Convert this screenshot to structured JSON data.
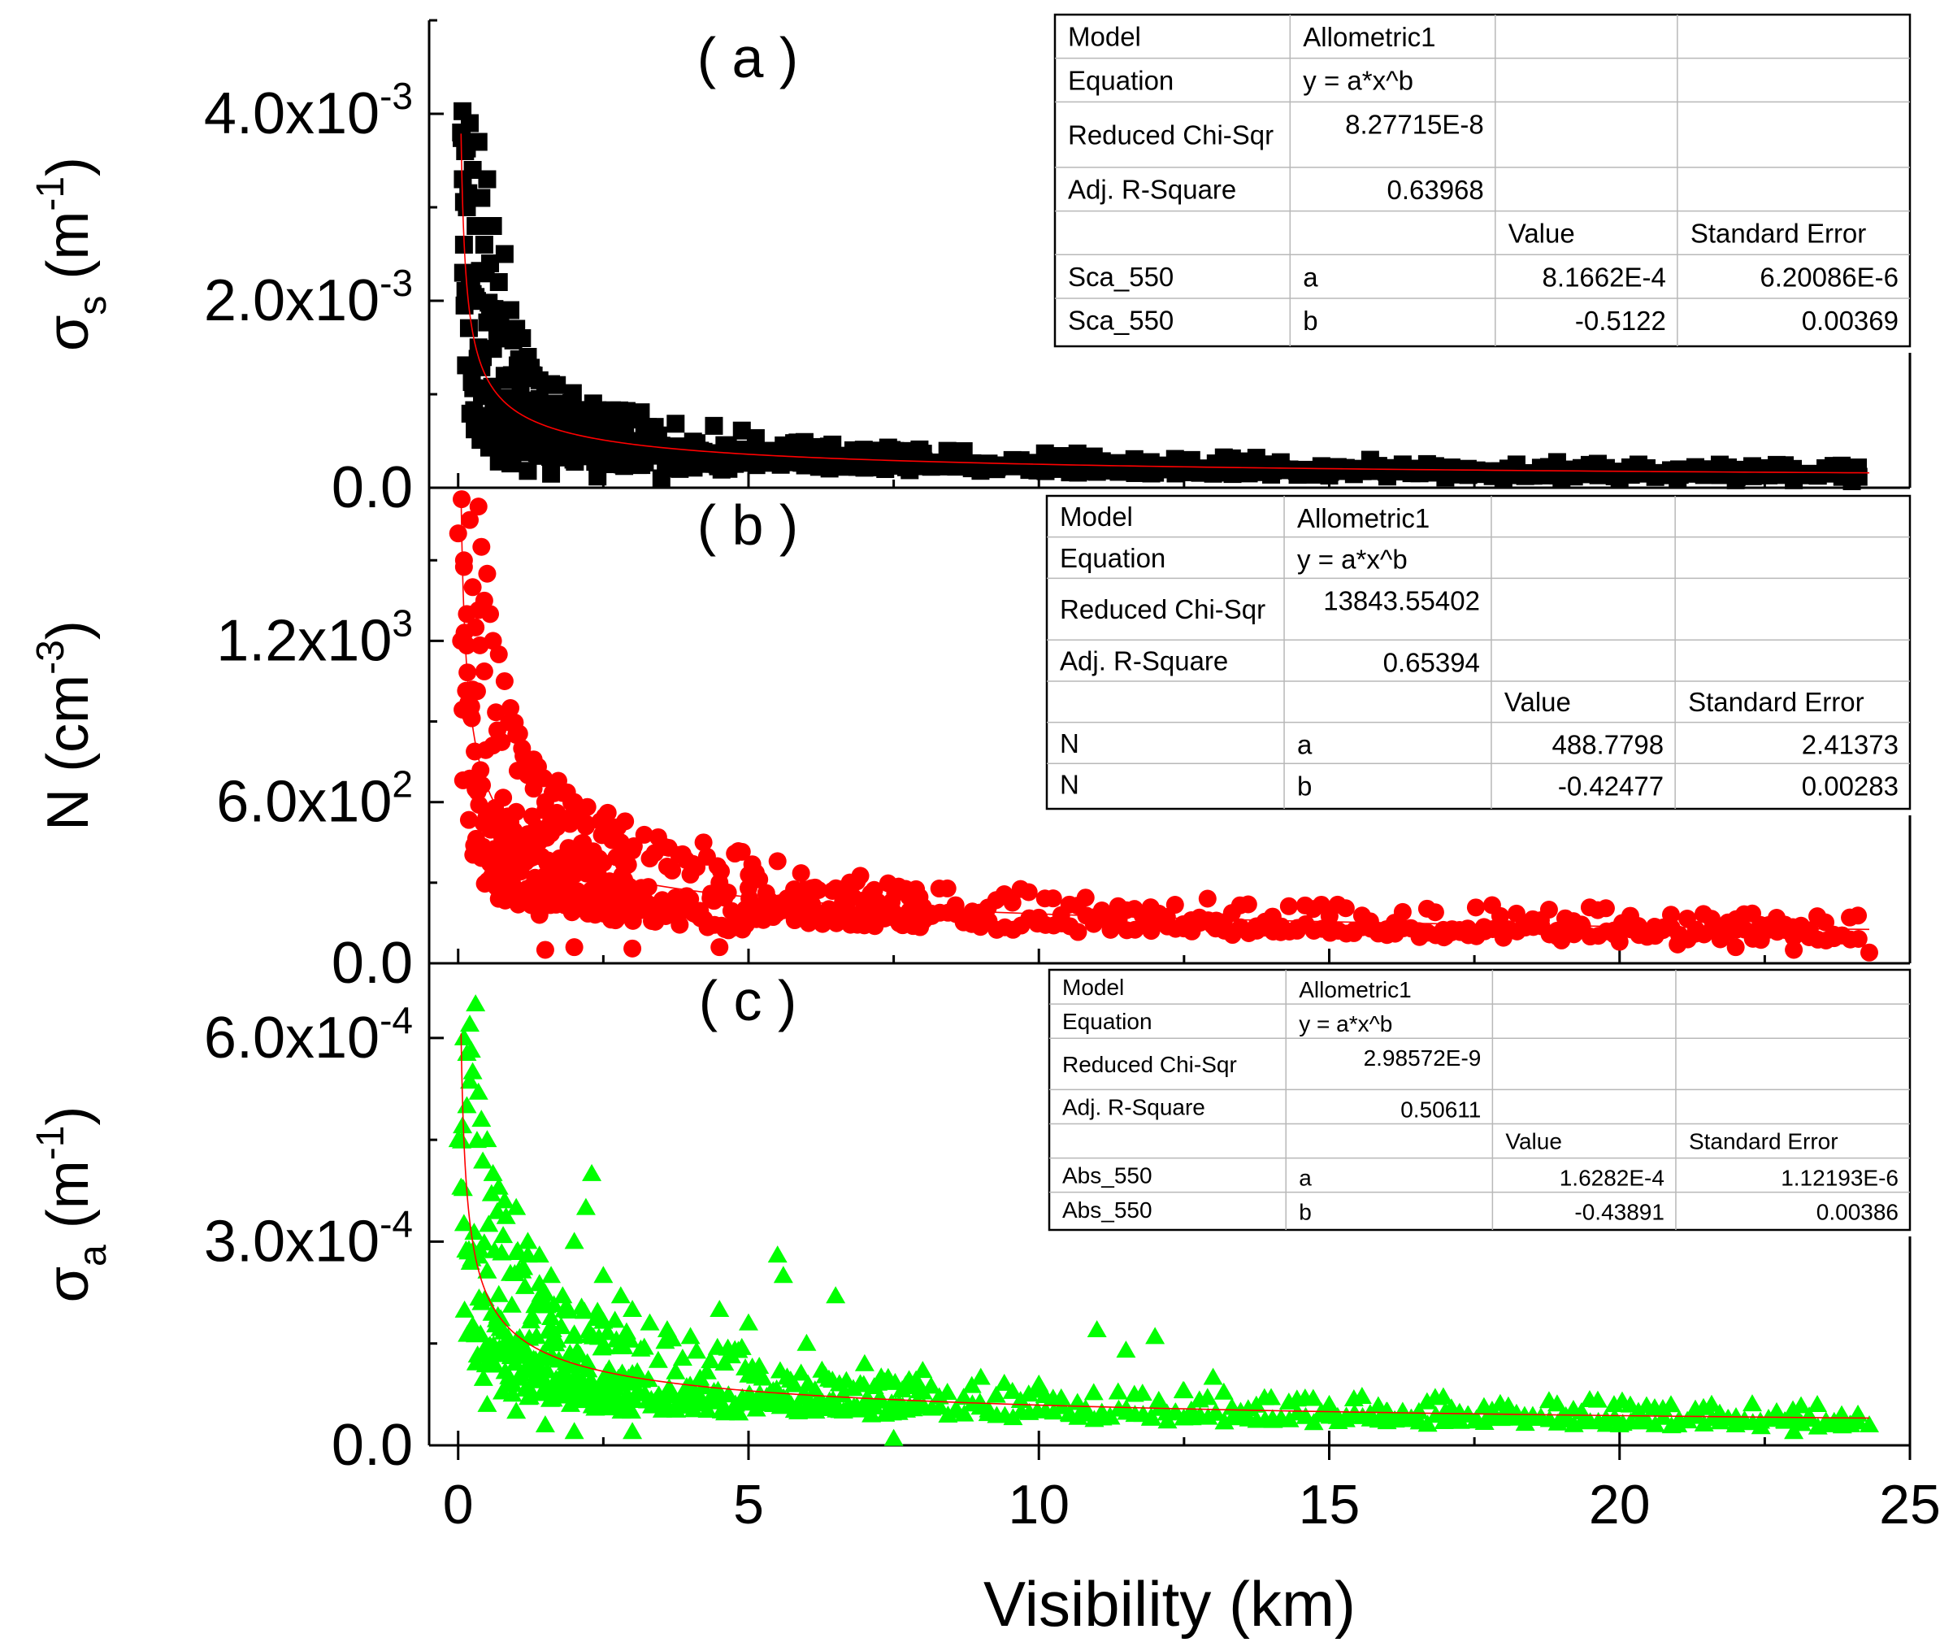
{
  "chart_data": [
    {
      "id": "a",
      "type": "scatter",
      "panel_label": "( a )",
      "ylabel": "σs (m-1)",
      "ylabel_main": "σ",
      "ylabel_sub": "s",
      "ylabel_unit_base": " (m",
      "ylabel_unit_exp": "-1",
      "ylabel_unit_close": ")",
      "ylim": [
        0,
        0.005
      ],
      "xlim": [
        -0.5,
        25
      ],
      "yticks": [
        {
          "value": 0.0,
          "mantissa": "0.0",
          "exp": ""
        },
        {
          "value": 0.002,
          "mantissa": "2.0x10",
          "exp": "-3"
        },
        {
          "value": 0.004,
          "mantissa": "4.0x10",
          "exp": "-3"
        }
      ],
      "marker": "square",
      "color": "#000000",
      "fit": {
        "a": 0.00081662,
        "b": -0.5122,
        "x_start": 0.05,
        "x_end": 24.3
      },
      "points": [
        [
          0.05,
          0.0038
        ],
        [
          0.08,
          0.0033
        ],
        [
          0.1,
          0.0026
        ],
        [
          0.12,
          0.0036
        ],
        [
          0.15,
          0.003
        ],
        [
          0.2,
          0.0039
        ],
        [
          0.25,
          0.0034
        ],
        [
          0.3,
          0.0028
        ],
        [
          0.35,
          0.0037
        ],
        [
          0.4,
          0.0031
        ],
        [
          0.45,
          0.0026
        ],
        [
          0.5,
          0.0033
        ],
        [
          0.55,
          0.0024
        ],
        [
          0.6,
          0.0028
        ],
        [
          0.7,
          0.0022
        ],
        [
          0.8,
          0.0025
        ],
        [
          0.9,
          0.0019
        ],
        [
          1.0,
          0.0017
        ],
        [
          1.1,
          0.0016
        ],
        [
          1.2,
          0.0014
        ],
        [
          1.3,
          0.0012
        ],
        [
          1.4,
          0.00095
        ],
        [
          1.5,
          0.0011
        ],
        [
          1.7,
          0.0009
        ],
        [
          1.9,
          0.0008
        ],
        [
          2.1,
          0.00075
        ],
        [
          2.3,
          0.0007
        ],
        [
          2.5,
          0.00065
        ],
        [
          2.8,
          0.00055
        ],
        [
          3.1,
          0.0005
        ],
        [
          3.5,
          0.00045
        ],
        [
          4.0,
          0.0004
        ],
        [
          4.5,
          0.00037
        ],
        [
          5.0,
          0.00033
        ],
        [
          5.5,
          0.0003
        ],
        [
          6.0,
          0.00028
        ],
        [
          7.0,
          0.00025
        ],
        [
          8.0,
          0.00023
        ],
        [
          9.0,
          0.0002
        ],
        [
          10.0,
          0.00019
        ],
        [
          11.0,
          0.00017
        ],
        [
          12.0,
          0.00016
        ],
        [
          13.0,
          0.00015
        ],
        [
          14.0,
          0.00014
        ],
        [
          15.0,
          0.00013
        ],
        [
          16.0,
          0.00012
        ],
        [
          17.0,
          0.00011
        ],
        [
          18.0,
          0.0001
        ],
        [
          19.0,
          0.0001
        ],
        [
          20.0,
          9e-05
        ],
        [
          21.0,
          9e-05
        ],
        [
          22.0,
          8e-05
        ],
        [
          23.0,
          8e-05
        ],
        [
          24.0,
          7e-05
        ],
        [
          0.7,
          0.00028
        ],
        [
          0.9,
          0.00026
        ],
        [
          1.2,
          0.00018
        ],
        [
          1.6,
          0.00015
        ],
        [
          2.4,
          0.00012
        ],
        [
          3.5,
          0.0001
        ],
        [
          1.4,
          0.0006
        ],
        [
          2.0,
          0.0005
        ],
        [
          7.5,
          0.0003
        ],
        [
          8.0,
          0.00029
        ]
      ],
      "stats": {
        "model_label": "Model",
        "model_value": "Allometric1",
        "equation_label": "Equation",
        "equation_value": "y = a*x^b",
        "chisq_label": "Reduced Chi-Sqr",
        "chisq_value": "8.27715E-8",
        "r2_label": "Adj. R-Square",
        "r2_value": "0.63968",
        "value_header": "Value",
        "se_header": "Standard Error",
        "rows": [
          {
            "name": "Sca_550",
            "param": "a",
            "value": "8.1662E-4",
            "se": "6.20086E-6"
          },
          {
            "name": "Sca_550",
            "param": "b",
            "value": "-0.5122",
            "se": "0.00369"
          }
        ]
      }
    },
    {
      "id": "b",
      "type": "scatter",
      "panel_label": "( b )",
      "ylabel": "N (cm-3)",
      "ylabel_main": "N",
      "ylabel_sub": "",
      "ylabel_unit_base": " (cm",
      "ylabel_unit_exp": "-3",
      "ylabel_unit_close": ")",
      "ylim": [
        0,
        1770
      ],
      "xlim": [
        -0.5,
        25
      ],
      "yticks": [
        {
          "value": 0,
          "mantissa": "0.0",
          "exp": ""
        },
        {
          "value": 600,
          "mantissa": "6.0x10",
          "exp": "2"
        },
        {
          "value": 1200,
          "mantissa": "1.2x10",
          "exp": "3"
        }
      ],
      "marker": "circle",
      "color": "#ff0000",
      "fit": {
        "a": 488.7798,
        "b": -0.42477,
        "x_start": 0.05,
        "x_end": 24.3
      },
      "points": [
        [
          0.0,
          1600
        ],
        [
          0.05,
          1200
        ],
        [
          0.1,
          1500
        ],
        [
          0.15,
          1300
        ],
        [
          0.2,
          1650
        ],
        [
          0.25,
          1400
        ],
        [
          0.3,
          1250
        ],
        [
          0.35,
          1700
        ],
        [
          0.4,
          1550
        ],
        [
          0.45,
          1350
        ],
        [
          0.5,
          1450
        ],
        [
          0.55,
          1300
        ],
        [
          0.6,
          1200
        ],
        [
          0.7,
          1150
        ],
        [
          0.8,
          1050
        ],
        [
          0.9,
          950
        ],
        [
          1.0,
          850
        ],
        [
          1.1,
          800
        ],
        [
          1.2,
          700
        ],
        [
          1.3,
          650
        ],
        [
          1.5,
          600
        ],
        [
          1.7,
          560
        ],
        [
          1.9,
          540
        ],
        [
          2.0,
          600
        ],
        [
          2.2,
          520
        ],
        [
          2.5,
          480
        ],
        [
          2.8,
          450
        ],
        [
          3.0,
          420
        ],
        [
          3.3,
          390
        ],
        [
          3.6,
          360
        ],
        [
          4.0,
          330
        ],
        [
          4.5,
          300
        ],
        [
          5.0,
          280
        ],
        [
          5.5,
          380
        ],
        [
          6.0,
          250
        ],
        [
          7.0,
          220
        ],
        [
          8.0,
          200
        ],
        [
          9.0,
          180
        ],
        [
          10.0,
          170
        ],
        [
          11.0,
          160
        ],
        [
          12.0,
          150
        ],
        [
          13.0,
          140
        ],
        [
          14.0,
          130
        ],
        [
          15.0,
          120
        ],
        [
          16.0,
          110
        ],
        [
          17.0,
          100
        ],
        [
          18.0,
          95
        ],
        [
          19.0,
          85
        ],
        [
          20.0,
          80
        ],
        [
          21.0,
          70
        ],
        [
          22.0,
          60
        ],
        [
          23.0,
          50
        ],
        [
          24.3,
          40
        ],
        [
          1.5,
          50
        ],
        [
          2.0,
          60
        ],
        [
          3.0,
          55
        ],
        [
          4.5,
          60
        ],
        [
          0.7,
          240
        ],
        [
          1.0,
          250
        ],
        [
          1.4,
          180
        ],
        [
          2.5,
          200
        ]
      ],
      "stats": {
        "model_label": "Model",
        "model_value": "Allometric1",
        "equation_label": "Equation",
        "equation_value": "y = a*x^b",
        "chisq_label": "Reduced Chi-Sqr",
        "chisq_value": "13843.55402",
        "r2_label": "Adj. R-Square",
        "r2_value": "0.65394",
        "value_header": "Value",
        "se_header": "Standard Error",
        "rows": [
          {
            "name": "N",
            "param": "a",
            "value": "488.7798",
            "se": "2.41373"
          },
          {
            "name": "N",
            "param": "b",
            "value": "-0.42477",
            "se": "0.00283"
          }
        ]
      }
    },
    {
      "id": "c",
      "type": "scatter",
      "panel_label": "( c )",
      "ylabel": "σa (m-1)",
      "ylabel_main": "σ",
      "ylabel_sub": "a",
      "ylabel_unit_base": " (m",
      "ylabel_unit_exp": "-1",
      "ylabel_unit_close": ")",
      "ylim": [
        0,
        0.00071
      ],
      "xlim": [
        -0.5,
        25
      ],
      "yticks": [
        {
          "value": 0.0,
          "mantissa": "0.0",
          "exp": ""
        },
        {
          "value": 0.0003,
          "mantissa": "3.0x10",
          "exp": "-4"
        },
        {
          "value": 0.0006,
          "mantissa": "6.0x10",
          "exp": "-4"
        }
      ],
      "marker": "triangle",
      "color": "#00ff00",
      "fit": {
        "a": 0.00016282,
        "b": -0.43891,
        "x_start": 0.05,
        "x_end": 24.3
      },
      "points": [
        [
          0.0,
          0.00045
        ],
        [
          0.05,
          0.00038
        ],
        [
          0.1,
          0.0006
        ],
        [
          0.15,
          0.0005
        ],
        [
          0.2,
          0.00062
        ],
        [
          0.25,
          0.00055
        ],
        [
          0.3,
          0.00065
        ],
        [
          0.35,
          0.00052
        ],
        [
          0.4,
          0.00048
        ],
        [
          0.5,
          0.00045
        ],
        [
          0.6,
          0.0004
        ],
        [
          0.7,
          0.00038
        ],
        [
          0.8,
          0.00036
        ],
        [
          1.0,
          0.00035
        ],
        [
          1.2,
          0.0003
        ],
        [
          1.4,
          0.00028
        ],
        [
          1.6,
          0.00025
        ],
        [
          1.8,
          0.00022
        ],
        [
          2.0,
          0.0003
        ],
        [
          2.2,
          0.00035
        ],
        [
          2.3,
          0.0004
        ],
        [
          2.5,
          0.00025
        ],
        [
          2.8,
          0.00022
        ],
        [
          3.0,
          0.0002
        ],
        [
          3.3,
          0.00018
        ],
        [
          3.6,
          0.00017
        ],
        [
          4.0,
          0.00016
        ],
        [
          4.5,
          0.0002
        ],
        [
          5.0,
          0.00018
        ],
        [
          5.5,
          0.00028
        ],
        [
          5.6,
          0.00025
        ],
        [
          6.0,
          0.00015
        ],
        [
          6.5,
          0.00022
        ],
        [
          7.0,
          0.00012
        ],
        [
          8.0,
          0.00011
        ],
        [
          9.0,
          0.0001
        ],
        [
          10.0,
          9e-05
        ],
        [
          11.0,
          0.00017
        ],
        [
          11.5,
          0.00014
        ],
        [
          12.0,
          0.00016
        ],
        [
          12.5,
          8e-05
        ],
        [
          13.0,
          0.0001
        ],
        [
          14.0,
          7e-05
        ],
        [
          15.0,
          6e-05
        ],
        [
          16.0,
          5e-05
        ],
        [
          17.0,
          5e-05
        ],
        [
          18.0,
          4e-05
        ],
        [
          19.0,
          4e-05
        ],
        [
          20.0,
          3e-05
        ],
        [
          21.0,
          3e-05
        ],
        [
          22.0,
          3e-05
        ],
        [
          23.0,
          2e-05
        ],
        [
          24.3,
          3e-05
        ],
        [
          0.5,
          6e-05
        ],
        [
          1.0,
          5e-05
        ],
        [
          1.5,
          3e-05
        ],
        [
          2.0,
          2e-05
        ],
        [
          3.0,
          2e-05
        ],
        [
          7.5,
          1e-05
        ],
        [
          1.3,
          0.00012
        ]
      ],
      "stats": {
        "model_label": "Model",
        "model_value": "Allometric1",
        "equation_label": "Equation",
        "equation_value": "y = a*x^b",
        "chisq_label": "Reduced Chi-Sqr",
        "chisq_value": "2.98572E-9",
        "r2_label": "Adj. R-Square",
        "r2_value": "0.50611",
        "value_header": "Value",
        "se_header": "Standard Error",
        "rows": [
          {
            "name": "Abs_550",
            "param": "a",
            "value": "1.6282E-4",
            "se": "1.12193E-6"
          },
          {
            "name": "Abs_550",
            "param": "b",
            "value": "-0.43891",
            "se": "0.00386"
          }
        ]
      }
    }
  ],
  "x_axis": {
    "xlabel": "Visibility (km)",
    "xticks": [
      {
        "value": 0,
        "label": "0"
      },
      {
        "value": 5,
        "label": "5"
      },
      {
        "value": 10,
        "label": "10"
      },
      {
        "value": 15,
        "label": "15"
      },
      {
        "value": 20,
        "label": "20"
      },
      {
        "value": 25,
        "label": "25"
      }
    ]
  }
}
